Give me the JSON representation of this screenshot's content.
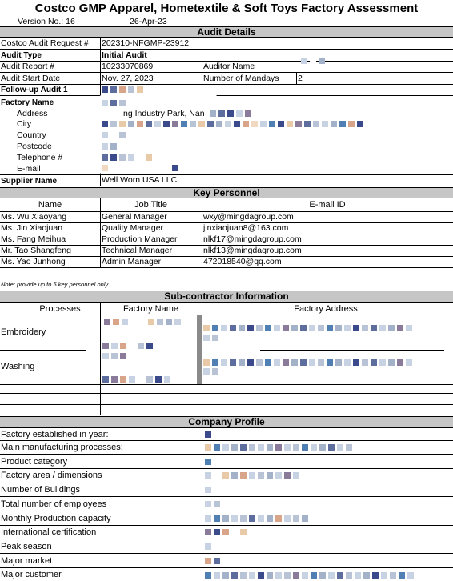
{
  "header": {
    "title": "Costco GMP Apparel, Hometextile & Soft Toys Factory Assessment",
    "version": "Version No.: 16",
    "date": "26-Apr-23"
  },
  "audit_details": {
    "section_title": "Audit Details",
    "request_label": "Costco Audit Request #",
    "request_value": "202310-NFGMP-23912",
    "type_label": "Audit Type",
    "type_value": "Initial Audit",
    "report_label": "Audit Report #",
    "report_value": "10233070869",
    "auditor_label": "Auditor Name",
    "start_label": "Audit Start Date",
    "start_value": "Nov. 27, 2023",
    "mandays_label": "Number of Mandays",
    "mandays_value": "2",
    "followup_label": "Follow-up Audit 1",
    "factory_label": "Factory Name",
    "address_label": "Address",
    "address_partial": "ng Industry Park, Nan",
    "city_label": "City",
    "country_label": "Country",
    "postcode_label": "Postcode",
    "telephone_label": "Telephone #",
    "email_label": "E-mail",
    "supplier_label": "Supplier Name",
    "supplier_value": "Well Worn USA LLC"
  },
  "key_personnel": {
    "section_title": "Key Personnel",
    "headers": [
      "Name",
      "Job Title",
      "E-mail ID"
    ],
    "rows": [
      {
        "name": "Ms. Wu Xiaoyang",
        "title": "General Manager",
        "email": "wxy@mingdagroup.com"
      },
      {
        "name": "Ms. Jin Xiaojuan",
        "title": "Quality Manager",
        "email": "jinxiaojuan8@163.com"
      },
      {
        "name": "Ms. Fang Meihua",
        "title": "Production Manager",
        "email": "nlkf17@mingdagroup.com"
      },
      {
        "name": "Mr. Tao Shangfeng",
        "title": "Technical Manager",
        "email": "nlkf13@mingdagroup.com"
      },
      {
        "name": "Ms. Yao Junhong",
        "title": "Admin Manager",
        "email": "472018540@qq.com"
      }
    ],
    "note": "Note: provide up to 5 key personnel only"
  },
  "subcontractor": {
    "section_title": "Sub-contractor Information",
    "headers": [
      "Processes",
      "Factory Name",
      "Factory Address"
    ],
    "rows": [
      {
        "process": "Embroidery"
      },
      {
        "process": "Washing"
      }
    ]
  },
  "company_profile": {
    "section_title": "Company Profile",
    "items": [
      "Factory established in year:",
      "Main manufacturing processes:",
      "Product category",
      "Factory area / dimensions",
      "Number of Buildings",
      "Total number of employees",
      "Monthly Production capacity",
      "International certification",
      "Peak season",
      "Major market",
      "Major customer"
    ]
  },
  "colors": {
    "section_bar": "#c6c6c6",
    "redaction_palette": [
      "#3b4a8a",
      "#5d6e9e",
      "#b8c4d6",
      "#e8c9a8",
      "#8a7b9b",
      "#d9a58a",
      "#4f7fb3",
      "#c7d3e3",
      "#a3b1c9",
      "#f0d9c0"
    ]
  }
}
